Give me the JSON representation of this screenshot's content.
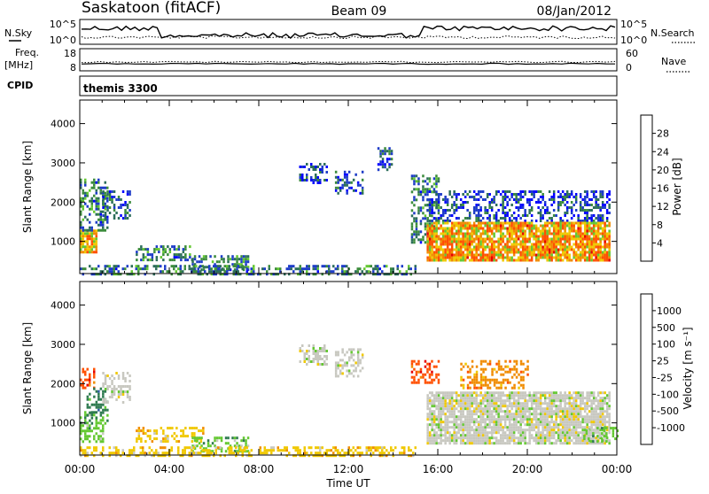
{
  "header": {
    "station": "Saskatoon (fitACF)",
    "beam": "Beam 09",
    "date": "08/Jan/2012"
  },
  "noise_panel": {
    "left_label": "N.Sky",
    "right_label": "N.Search",
    "left_ticks": [
      "10^5",
      "10^0"
    ],
    "right_ticks": [
      "10^5",
      "10^0"
    ],
    "left_line_style": "solid",
    "right_line_style": "dotted"
  },
  "freq_panel": {
    "left_label_top": "Freq.",
    "left_label_unit": "[MHz]",
    "right_label": "Nave",
    "left_ticks": [
      "18",
      "8"
    ],
    "right_ticks": [
      "60",
      "0"
    ]
  },
  "cpid_panel": {
    "label": "CPID",
    "mode_text": "themis 3300"
  },
  "colors": {
    "power_scale": [
      "#0000ff",
      "#1e3cc8",
      "#2c6e5a",
      "#3c8c3c",
      "#64c832",
      "#f0c800",
      "#f08c00",
      "#ff5000",
      "#e60000"
    ],
    "velocity_scale": [
      "#1e32c8",
      "#2c5a9c",
      "#2e7a50",
      "#64c832",
      "#c8c8c0",
      "#f0c800",
      "#f08c00",
      "#ff5000",
      "#e60000"
    ]
  },
  "chart_data": [
    {
      "type": "heatmap",
      "name": "power",
      "ylabel": "Slant Range [km]",
      "yticks": [
        "1000",
        "2000",
        "3000",
        "4000"
      ],
      "xticks": [
        "00:00",
        "04:00",
        "08:00",
        "12:00",
        "16:00",
        "20:00",
        "00:00"
      ],
      "xlim": [
        0,
        24
      ],
      "ylim": [
        180,
        4600
      ],
      "colorbar": {
        "label": "Power [dB]",
        "ticks": [
          "4",
          "8",
          "12",
          "16",
          "20",
          "24",
          "28"
        ],
        "range": [
          0,
          30
        ]
      },
      "regions": [
        {
          "t": [
            0.0,
            0.7
          ],
          "r": [
            700,
            1300
          ],
          "level": 20
        },
        {
          "t": [
            0.0,
            1.2
          ],
          "r": [
            1300,
            2600
          ],
          "level": 9
        },
        {
          "t": [
            1.0,
            2.2
          ],
          "r": [
            1600,
            2300
          ],
          "level": 7
        },
        {
          "t": [
            2.5,
            5.0
          ],
          "r": [
            500,
            900
          ],
          "level": 9
        },
        {
          "t": [
            5.0,
            7.5
          ],
          "r": [
            250,
            650
          ],
          "level": 9
        },
        {
          "t": [
            9.8,
            11.0
          ],
          "r": [
            2500,
            3000
          ],
          "level": 6
        },
        {
          "t": [
            11.4,
            12.6
          ],
          "r": [
            2200,
            2800
          ],
          "level": 6
        },
        {
          "t": [
            13.3,
            13.9
          ],
          "r": [
            2800,
            3400
          ],
          "level": 6
        },
        {
          "t": [
            14.8,
            16.0
          ],
          "r": [
            1000,
            2700
          ],
          "level": 9
        },
        {
          "t": [
            15.5,
            23.7
          ],
          "r": [
            1500,
            2300
          ],
          "level": 5
        },
        {
          "t": [
            15.5,
            23.7
          ],
          "r": [
            500,
            1500
          ],
          "level": 21
        },
        {
          "t": [
            0.0,
            15.0
          ],
          "r": [
            180,
            400
          ],
          "level": 9
        }
      ]
    },
    {
      "type": "heatmap",
      "name": "velocity",
      "ylabel": "Slant Range [km]",
      "xlabel": "Time UT",
      "yticks": [
        "1000",
        "2000",
        "3000",
        "4000"
      ],
      "xticks": [
        "00:00",
        "04:00",
        "08:00",
        "12:00",
        "16:00",
        "20:00",
        "00:00"
      ],
      "xlim": [
        0,
        24
      ],
      "ylim": [
        180,
        4600
      ],
      "colorbar": {
        "label": "Velocity [m s⁻¹]",
        "ticks": [
          "1000",
          "500",
          "100",
          "25",
          "-25",
          "-100",
          "-500",
          "-1000"
        ]
      },
      "regions": [
        {
          "t": [
            0.0,
            1.0
          ],
          "r": [
            500,
            1300
          ],
          "level": 3
        },
        {
          "t": [
            0.0,
            0.6
          ],
          "r": [
            1900,
            2400
          ],
          "level": 7
        },
        {
          "t": [
            0.3,
            1.2
          ],
          "r": [
            1000,
            1900
          ],
          "level": 2
        },
        {
          "t": [
            1.0,
            2.2
          ],
          "r": [
            1500,
            2300
          ],
          "level": 4
        },
        {
          "t": [
            2.5,
            5.5
          ],
          "r": [
            500,
            900
          ],
          "level": 5
        },
        {
          "t": [
            5.0,
            7.5
          ],
          "r": [
            250,
            650
          ],
          "level": 3
        },
        {
          "t": [
            9.8,
            11.0
          ],
          "r": [
            2500,
            3000
          ],
          "level": 4
        },
        {
          "t": [
            11.4,
            12.6
          ],
          "r": [
            2200,
            2900
          ],
          "level": 4
        },
        {
          "t": [
            14.8,
            16.0
          ],
          "r": [
            2000,
            2600
          ],
          "level": 7
        },
        {
          "t": [
            15.5,
            23.7
          ],
          "r": [
            500,
            1800
          ],
          "level": 4
        },
        {
          "t": [
            17.0,
            20.0
          ],
          "r": [
            1900,
            2600
          ],
          "level": 6
        },
        {
          "t": [
            22.5,
            24.0
          ],
          "r": [
            500,
            900
          ],
          "level": 3
        },
        {
          "t": [
            0.0,
            15.0
          ],
          "r": [
            180,
            400
          ],
          "level": 5
        }
      ]
    }
  ]
}
